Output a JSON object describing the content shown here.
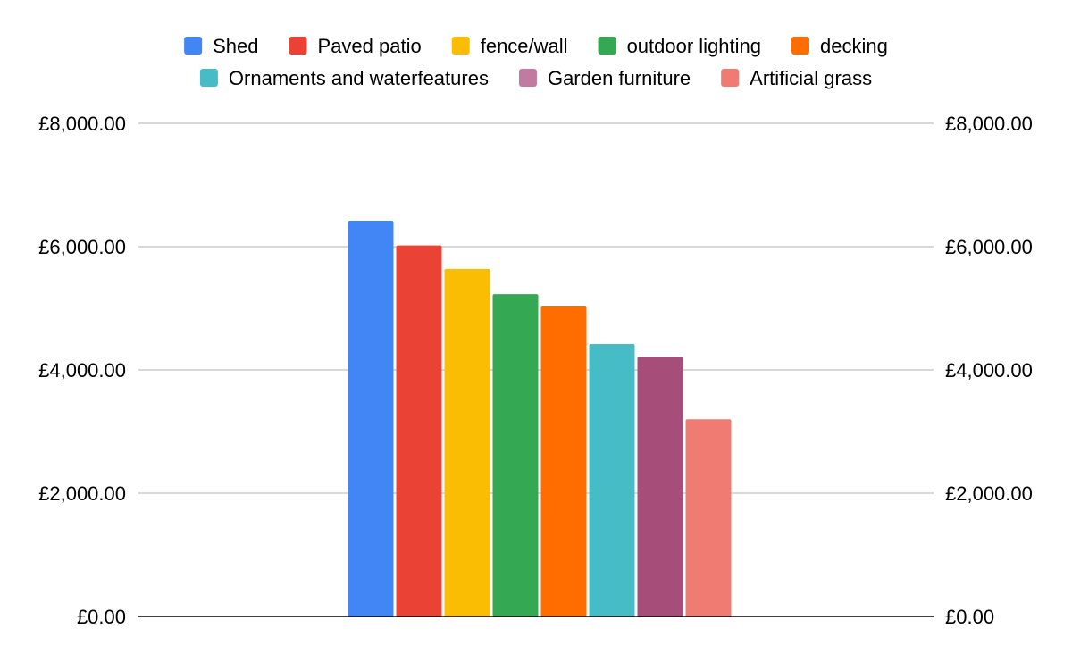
{
  "chart_data": {
    "type": "bar",
    "title": "",
    "xlabel": "",
    "ylabel": "",
    "ylim": [
      0,
      8000
    ],
    "y_ticks": [
      0,
      2000,
      4000,
      6000,
      8000
    ],
    "y_tick_labels": [
      "£0.00",
      "£2,000.00",
      "£4,000.00",
      "£6,000.00",
      "£8,000.00"
    ],
    "secondary_y_tick_labels": [
      "£0.00",
      "£2,000.00",
      "£4,000.00",
      "£6,000.00",
      "£8,000.00"
    ],
    "grid": true,
    "legend_position": "top",
    "series": [
      {
        "name": "Shed",
        "value": 6420,
        "color": "#4285F4"
      },
      {
        "name": "Paved patio",
        "value": 6020,
        "color": "#EA4335"
      },
      {
        "name": "fence/wall",
        "value": 5640,
        "color": "#FBBC04"
      },
      {
        "name": "outdoor lighting",
        "value": 5230,
        "color": "#34A853"
      },
      {
        "name": "decking",
        "value": 5030,
        "color": "#FF6D01"
      },
      {
        "name": "Ornaments and waterfeatures",
        "value": 4420,
        "color": "#46BDC6"
      },
      {
        "name": "Garden furniture",
        "value": 4210,
        "color": "#A64D79"
      },
      {
        "name": "Artificial grass",
        "value": 3200,
        "color": "#EF7B72"
      }
    ],
    "legend_swatch_colors": [
      "#4285F4",
      "#EA4335",
      "#FBBC04",
      "#34A853",
      "#FF6D01",
      "#46BDC6",
      "#C27BA0",
      "#EF7B72"
    ]
  }
}
